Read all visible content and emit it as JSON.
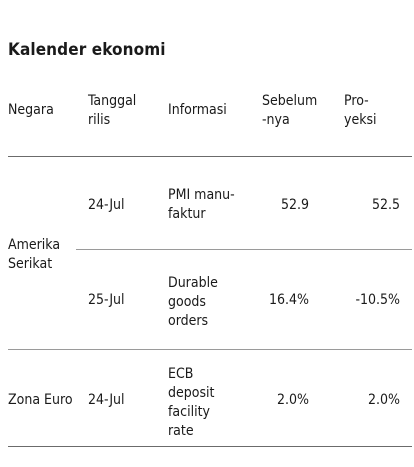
{
  "title": "Kalender ekonomi",
  "headers": {
    "country": "Negara",
    "release_date": "Tanggal\nrilis",
    "information": "Informasi",
    "previous": "Sebelum\n-nya",
    "projection": "Pro-\nyeksi"
  },
  "rows": [
    {
      "country": "Amerika\nSerikat",
      "date": "24-Jul",
      "info": "PMI manu-\nfaktur",
      "previous": "52.9",
      "projection": "52.5"
    },
    {
      "country": "",
      "date": "25-Jul",
      "info": "Durable\ngoods\norders",
      "previous": "16.4%",
      "projection": "-10.5%"
    },
    {
      "country": "Zona Euro",
      "date": "24-Jul",
      "info": "ECB\ndeposit\nfacility\nrate",
      "previous": "2.0%",
      "projection": "2.0%"
    }
  ]
}
